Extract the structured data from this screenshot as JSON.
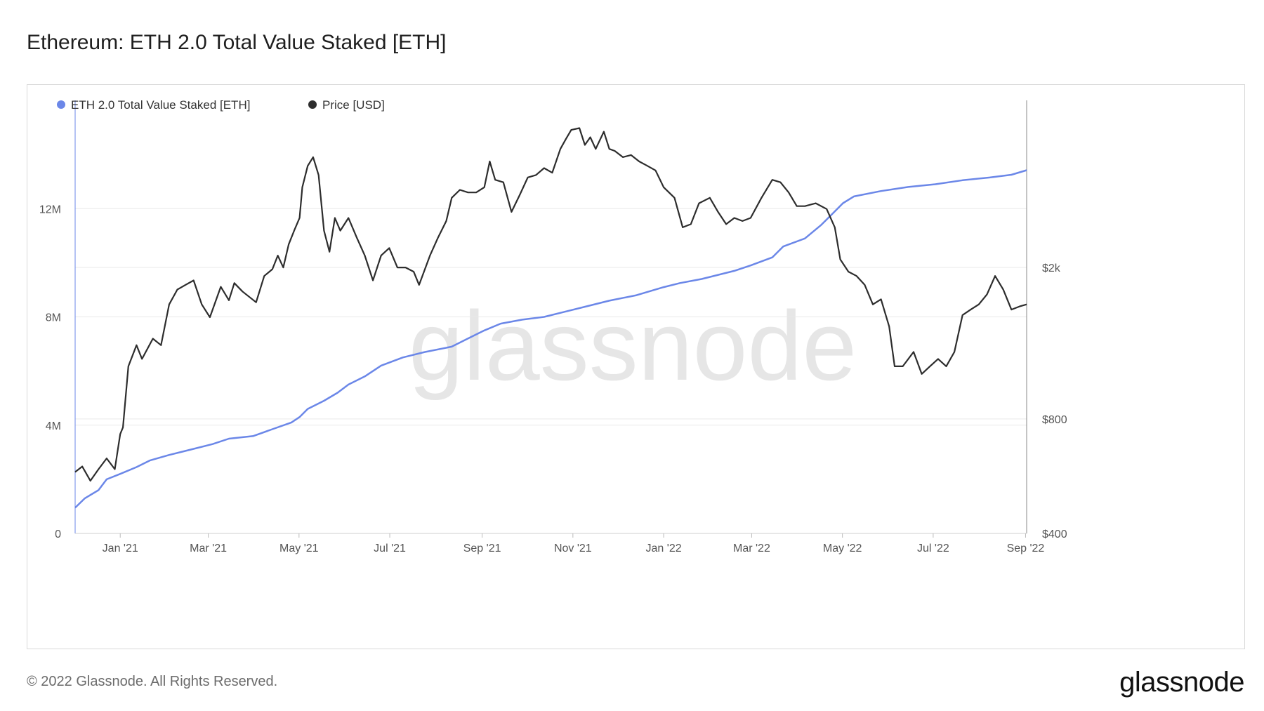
{
  "page": {
    "title": "Ethereum: ETH 2.0 Total Value Staked [ETH]",
    "copyright": "© 2022 Glassnode. All Rights Reserved.",
    "brand": "glassnode",
    "watermark": "glassnode"
  },
  "colors": {
    "staked": "#6b87e8",
    "price": "#2d2d2d",
    "grid": "#e9e9e9",
    "watermark": "#e6e6e6"
  },
  "chart_data": {
    "type": "line",
    "title": "Ethereum: ETH 2.0 Total Value Staked [ETH]",
    "x_range": [
      2020.917,
      2022.668
    ],
    "x_ticks": [
      {
        "label": "Jan '21",
        "t": 2021.0
      },
      {
        "label": "Mar '21",
        "t": 2021.162
      },
      {
        "label": "May '21",
        "t": 2021.329
      },
      {
        "label": "Jul '21",
        "t": 2021.496
      },
      {
        "label": "Sep '21",
        "t": 2021.666
      },
      {
        "label": "Nov '21",
        "t": 2021.833
      },
      {
        "label": "Jan '22",
        "t": 2022.0
      },
      {
        "label": "Mar '22",
        "t": 2022.162
      },
      {
        "label": "May '22",
        "t": 2022.329
      },
      {
        "label": "Jul '22",
        "t": 2022.496
      },
      {
        "label": "Sep '22",
        "t": 2022.666
      }
    ],
    "y_left": {
      "range": [
        0,
        16000000
      ],
      "ticks": [
        {
          "label": "0",
          "value": 0
        },
        {
          "label": "4M",
          "value": 4000000
        },
        {
          "label": "8M",
          "value": 8000000
        },
        {
          "label": "12M",
          "value": 12000000
        }
      ]
    },
    "y_right": {
      "scale": "log",
      "range": [
        400,
        5500
      ],
      "ticks": [
        {
          "label": "$400",
          "value": 400
        },
        {
          "label": "$800",
          "value": 800
        },
        {
          "label": "$2k",
          "value": 2000
        }
      ]
    },
    "series": [
      {
        "name": "ETH 2.0 Total Value Staked [ETH]",
        "axis": "left",
        "color": "#6b87e8",
        "points": [
          [
            2020.917,
            950000
          ],
          [
            2020.935,
            1300000
          ],
          [
            2020.96,
            1600000
          ],
          [
            2020.975,
            2000000
          ],
          [
            2021.0,
            2200000
          ],
          [
            2021.03,
            2450000
          ],
          [
            2021.055,
            2700000
          ],
          [
            2021.09,
            2900000
          ],
          [
            2021.13,
            3100000
          ],
          [
            2021.17,
            3300000
          ],
          [
            2021.2,
            3500000
          ],
          [
            2021.245,
            3600000
          ],
          [
            2021.28,
            3850000
          ],
          [
            2021.315,
            4100000
          ],
          [
            2021.33,
            4300000
          ],
          [
            2021.345,
            4600000
          ],
          [
            2021.375,
            4900000
          ],
          [
            2021.4,
            5200000
          ],
          [
            2021.42,
            5500000
          ],
          [
            2021.45,
            5800000
          ],
          [
            2021.48,
            6200000
          ],
          [
            2021.52,
            6500000
          ],
          [
            2021.56,
            6700000
          ],
          [
            2021.61,
            6900000
          ],
          [
            2021.64,
            7200000
          ],
          [
            2021.67,
            7500000
          ],
          [
            2021.7,
            7750000
          ],
          [
            2021.74,
            7900000
          ],
          [
            2021.78,
            8000000
          ],
          [
            2021.82,
            8200000
          ],
          [
            2021.86,
            8400000
          ],
          [
            2021.9,
            8600000
          ],
          [
            2021.95,
            8800000
          ],
          [
            2022.0,
            9100000
          ],
          [
            2022.03,
            9250000
          ],
          [
            2022.07,
            9400000
          ],
          [
            2022.13,
            9700000
          ],
          [
            2022.16,
            9900000
          ],
          [
            2022.2,
            10200000
          ],
          [
            2022.22,
            10600000
          ],
          [
            2022.26,
            10900000
          ],
          [
            2022.29,
            11400000
          ],
          [
            2022.31,
            11800000
          ],
          [
            2022.33,
            12200000
          ],
          [
            2022.35,
            12450000
          ],
          [
            2022.4,
            12650000
          ],
          [
            2022.45,
            12800000
          ],
          [
            2022.5,
            12900000
          ],
          [
            2022.55,
            13050000
          ],
          [
            2022.6,
            13150000
          ],
          [
            2022.64,
            13250000
          ],
          [
            2022.668,
            13420000
          ]
        ]
      },
      {
        "name": "Price [USD]",
        "axis": "right",
        "color": "#2d2d2d",
        "points": [
          [
            2020.917,
            580
          ],
          [
            2020.93,
            600
          ],
          [
            2020.945,
            550
          ],
          [
            2020.96,
            590
          ],
          [
            2020.975,
            630
          ],
          [
            2020.99,
            590
          ],
          [
            2021.0,
            730
          ],
          [
            2021.005,
            760
          ],
          [
            2021.015,
            1100
          ],
          [
            2021.03,
            1250
          ],
          [
            2021.04,
            1150
          ],
          [
            2021.06,
            1300
          ],
          [
            2021.075,
            1250
          ],
          [
            2021.09,
            1600
          ],
          [
            2021.105,
            1750
          ],
          [
            2021.12,
            1800
          ],
          [
            2021.135,
            1850
          ],
          [
            2021.15,
            1600
          ],
          [
            2021.165,
            1480
          ],
          [
            2021.185,
            1780
          ],
          [
            2021.2,
            1640
          ],
          [
            2021.21,
            1820
          ],
          [
            2021.225,
            1730
          ],
          [
            2021.25,
            1620
          ],
          [
            2021.265,
            1900
          ],
          [
            2021.28,
            1980
          ],
          [
            2021.29,
            2150
          ],
          [
            2021.3,
            2000
          ],
          [
            2021.31,
            2300
          ],
          [
            2021.32,
            2500
          ],
          [
            2021.33,
            2700
          ],
          [
            2021.335,
            3250
          ],
          [
            2021.345,
            3700
          ],
          [
            2021.355,
            3900
          ],
          [
            2021.365,
            3500
          ],
          [
            2021.375,
            2500
          ],
          [
            2021.385,
            2200
          ],
          [
            2021.395,
            2700
          ],
          [
            2021.405,
            2500
          ],
          [
            2021.42,
            2700
          ],
          [
            2021.435,
            2400
          ],
          [
            2021.45,
            2150
          ],
          [
            2021.465,
            1850
          ],
          [
            2021.48,
            2150
          ],
          [
            2021.495,
            2250
          ],
          [
            2021.51,
            2000
          ],
          [
            2021.525,
            2000
          ],
          [
            2021.54,
            1950
          ],
          [
            2021.55,
            1800
          ],
          [
            2021.57,
            2150
          ],
          [
            2021.585,
            2400
          ],
          [
            2021.6,
            2650
          ],
          [
            2021.61,
            3050
          ],
          [
            2021.625,
            3200
          ],
          [
            2021.64,
            3150
          ],
          [
            2021.655,
            3150
          ],
          [
            2021.67,
            3250
          ],
          [
            2021.68,
            3800
          ],
          [
            2021.69,
            3400
          ],
          [
            2021.705,
            3350
          ],
          [
            2021.72,
            2800
          ],
          [
            2021.735,
            3100
          ],
          [
            2021.75,
            3450
          ],
          [
            2021.765,
            3500
          ],
          [
            2021.78,
            3650
          ],
          [
            2021.795,
            3550
          ],
          [
            2021.81,
            4100
          ],
          [
            2021.82,
            4350
          ],
          [
            2021.83,
            4600
          ],
          [
            2021.845,
            4650
          ],
          [
            2021.855,
            4200
          ],
          [
            2021.865,
            4400
          ],
          [
            2021.875,
            4100
          ],
          [
            2021.89,
            4550
          ],
          [
            2021.9,
            4100
          ],
          [
            2021.91,
            4050
          ],
          [
            2021.925,
            3900
          ],
          [
            2021.94,
            3950
          ],
          [
            2021.955,
            3800
          ],
          [
            2021.97,
            3700
          ],
          [
            2021.985,
            3600
          ],
          [
            2022.0,
            3250
          ],
          [
            2022.02,
            3050
          ],
          [
            2022.035,
            2550
          ],
          [
            2022.05,
            2600
          ],
          [
            2022.065,
            2950
          ],
          [
            2022.085,
            3050
          ],
          [
            2022.1,
            2800
          ],
          [
            2022.115,
            2600
          ],
          [
            2022.13,
            2700
          ],
          [
            2022.145,
            2650
          ],
          [
            2022.16,
            2700
          ],
          [
            2022.18,
            3050
          ],
          [
            2022.2,
            3400
          ],
          [
            2022.215,
            3350
          ],
          [
            2022.23,
            3150
          ],
          [
            2022.245,
            2900
          ],
          [
            2022.26,
            2900
          ],
          [
            2022.28,
            2950
          ],
          [
            2022.3,
            2850
          ],
          [
            2022.315,
            2550
          ],
          [
            2022.325,
            2100
          ],
          [
            2022.34,
            1950
          ],
          [
            2022.355,
            1900
          ],
          [
            2022.37,
            1800
          ],
          [
            2022.385,
            1600
          ],
          [
            2022.4,
            1650
          ],
          [
            2022.415,
            1400
          ],
          [
            2022.425,
            1100
          ],
          [
            2022.44,
            1100
          ],
          [
            2022.46,
            1200
          ],
          [
            2022.475,
            1050
          ],
          [
            2022.49,
            1100
          ],
          [
            2022.505,
            1150
          ],
          [
            2022.52,
            1100
          ],
          [
            2022.535,
            1200
          ],
          [
            2022.55,
            1500
          ],
          [
            2022.565,
            1550
          ],
          [
            2022.58,
            1600
          ],
          [
            2022.595,
            1700
          ],
          [
            2022.61,
            1900
          ],
          [
            2022.625,
            1750
          ],
          [
            2022.64,
            1550
          ],
          [
            2022.655,
            1580
          ],
          [
            2022.668,
            1600
          ]
        ]
      }
    ]
  }
}
